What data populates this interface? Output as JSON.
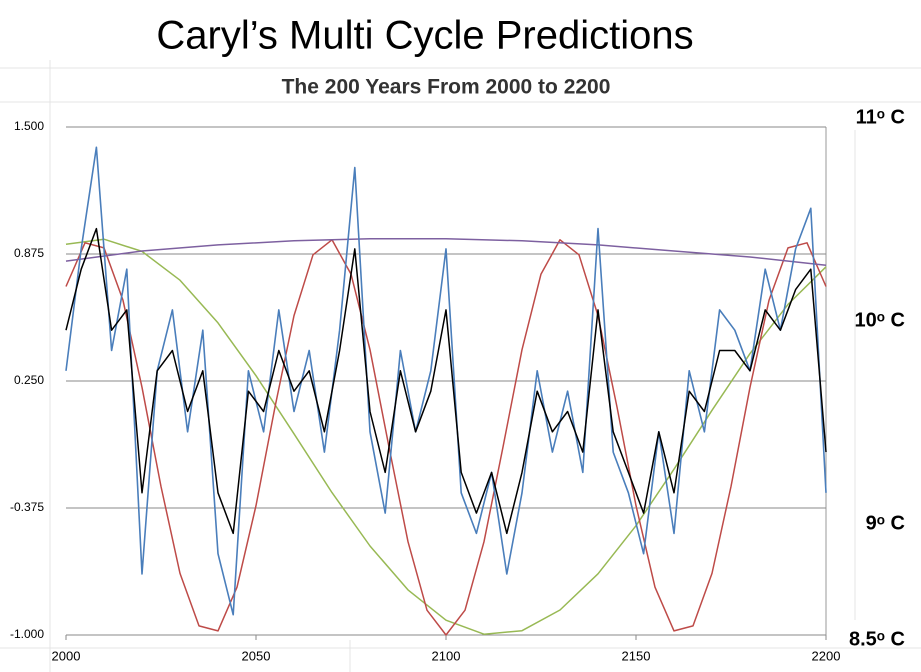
{
  "chart_data": {
    "type": "line",
    "title": "Caryl’s Multi Cycle Predictions",
    "subtitle": "The 200 Years From 2000 to 2200",
    "right_labels": [
      "11ᵒ C",
      "10ᵒ C",
      "9ᵒ C",
      "8.5ᵒ C"
    ],
    "xlim": [
      2000,
      2200
    ],
    "xticks": [
      2000,
      2050,
      2100,
      2150,
      2200
    ],
    "ylim": [
      -1,
      1.5
    ],
    "yticks": [
      {
        "value": -1,
        "label": "-1.000"
      },
      {
        "value": -0.375,
        "label": "-0.375"
      },
      {
        "value": 0.25,
        "label": "0.250"
      },
      {
        "value": 0.875,
        "label": "0.875"
      },
      {
        "value": 1.5,
        "label": "1.500"
      }
    ],
    "grid": true,
    "series": [
      {
        "color": "#98b954",
        "x": [
          2000,
          2010,
          2020,
          2030,
          2040,
          2050,
          2060,
          2070,
          2080,
          2090,
          2100,
          2110,
          2120,
          2130,
          2140,
          2150,
          2160,
          2170,
          2180,
          2190,
          2200
        ],
        "values": [
          0.923,
          0.948,
          0.888,
          0.746,
          0.536,
          0.276,
          -0.01,
          -0.299,
          -0.562,
          -0.778,
          -0.927,
          -0.996,
          -0.979,
          -0.877,
          -0.699,
          -0.462,
          -0.184,
          0.106,
          0.385,
          0.627,
          0.812
        ]
      },
      {
        "color": "#be4b48",
        "x": [
          2000,
          2005,
          2010,
          2015,
          2020,
          2025,
          2030,
          2035,
          2040,
          2045,
          2050,
          2055,
          2060,
          2065,
          2070,
          2075,
          2080,
          2085,
          2090,
          2095,
          2100,
          2105,
          2110,
          2115,
          2120,
          2125,
          2130,
          2135,
          2140,
          2145,
          2150,
          2155,
          2160,
          2165,
          2170,
          2175,
          2180,
          2185,
          2190,
          2195,
          2200
        ],
        "values": [
          0.715,
          0.93,
          0.905,
          0.647,
          0.219,
          -0.269,
          -0.697,
          -0.955,
          -0.98,
          -0.765,
          -0.363,
          0.122,
          0.572,
          0.871,
          0.945,
          0.776,
          0.404,
          -0.075,
          -0.541,
          -0.878,
          -1.0,
          -0.878,
          -0.541,
          -0.075,
          0.404,
          0.776,
          0.945,
          0.871,
          0.572,
          0.122,
          -0.363,
          -0.765,
          -0.98,
          -0.955,
          -0.697,
          -0.269,
          0.219,
          0.647,
          0.905,
          0.93,
          0.715
        ]
      },
      {
        "color": "#7d60a0",
        "x": [
          2000,
          2020,
          2040,
          2060,
          2080,
          2100,
          2120,
          2140,
          2160,
          2180,
          2200
        ],
        "values": [
          0.84,
          0.89,
          0.92,
          0.94,
          0.95,
          0.95,
          0.94,
          0.92,
          0.89,
          0.86,
          0.82
        ]
      },
      {
        "color": "#4a7ebb",
        "x": [
          2000,
          2004,
          2008,
          2012,
          2016,
          2020,
          2024,
          2028,
          2032,
          2036,
          2040,
          2044,
          2048,
          2052,
          2056,
          2060,
          2064,
          2068,
          2072,
          2076,
          2080,
          2084,
          2088,
          2092,
          2096,
          2100,
          2104,
          2108,
          2112,
          2116,
          2120,
          2124,
          2128,
          2132,
          2136,
          2140,
          2144,
          2148,
          2152,
          2156,
          2160,
          2164,
          2168,
          2172,
          2176,
          2180,
          2184,
          2188,
          2192,
          2196,
          2200
        ],
        "values": [
          0.3,
          0.9,
          1.4,
          0.4,
          0.8,
          -0.7,
          0.3,
          0.6,
          0.0,
          0.5,
          -0.6,
          -0.9,
          0.3,
          0.0,
          0.6,
          0.1,
          0.4,
          -0.1,
          0.5,
          1.3,
          0.0,
          -0.4,
          0.4,
          0.0,
          0.3,
          0.9,
          -0.3,
          -0.5,
          -0.2,
          -0.7,
          -0.3,
          0.3,
          -0.1,
          0.2,
          -0.2,
          1.0,
          -0.1,
          -0.3,
          -0.6,
          0.0,
          -0.5,
          0.3,
          0.0,
          0.6,
          0.5,
          0.3,
          0.8,
          0.5,
          0.9,
          1.1,
          -0.3
        ]
      },
      {
        "color": "#000000",
        "x": [
          2000,
          2004,
          2008,
          2012,
          2016,
          2020,
          2024,
          2028,
          2032,
          2036,
          2040,
          2044,
          2048,
          2052,
          2056,
          2060,
          2064,
          2068,
          2072,
          2076,
          2080,
          2084,
          2088,
          2092,
          2096,
          2100,
          2104,
          2108,
          2112,
          2116,
          2120,
          2124,
          2128,
          2132,
          2136,
          2140,
          2144,
          2148,
          2152,
          2156,
          2160,
          2164,
          2168,
          2172,
          2176,
          2180,
          2184,
          2188,
          2192,
          2196,
          2200
        ],
        "values": [
          0.5,
          0.8,
          1.0,
          0.5,
          0.6,
          -0.3,
          0.3,
          0.4,
          0.1,
          0.3,
          -0.3,
          -0.5,
          0.2,
          0.1,
          0.4,
          0.2,
          0.3,
          0.0,
          0.4,
          0.9,
          0.1,
          -0.2,
          0.3,
          0.0,
          0.2,
          0.6,
          -0.2,
          -0.4,
          -0.2,
          -0.5,
          -0.2,
          0.2,
          0.0,
          0.1,
          -0.1,
          0.6,
          0.0,
          -0.2,
          -0.4,
          0.0,
          -0.3,
          0.2,
          0.1,
          0.4,
          0.4,
          0.3,
          0.6,
          0.5,
          0.7,
          0.8,
          -0.1
        ]
      }
    ]
  }
}
